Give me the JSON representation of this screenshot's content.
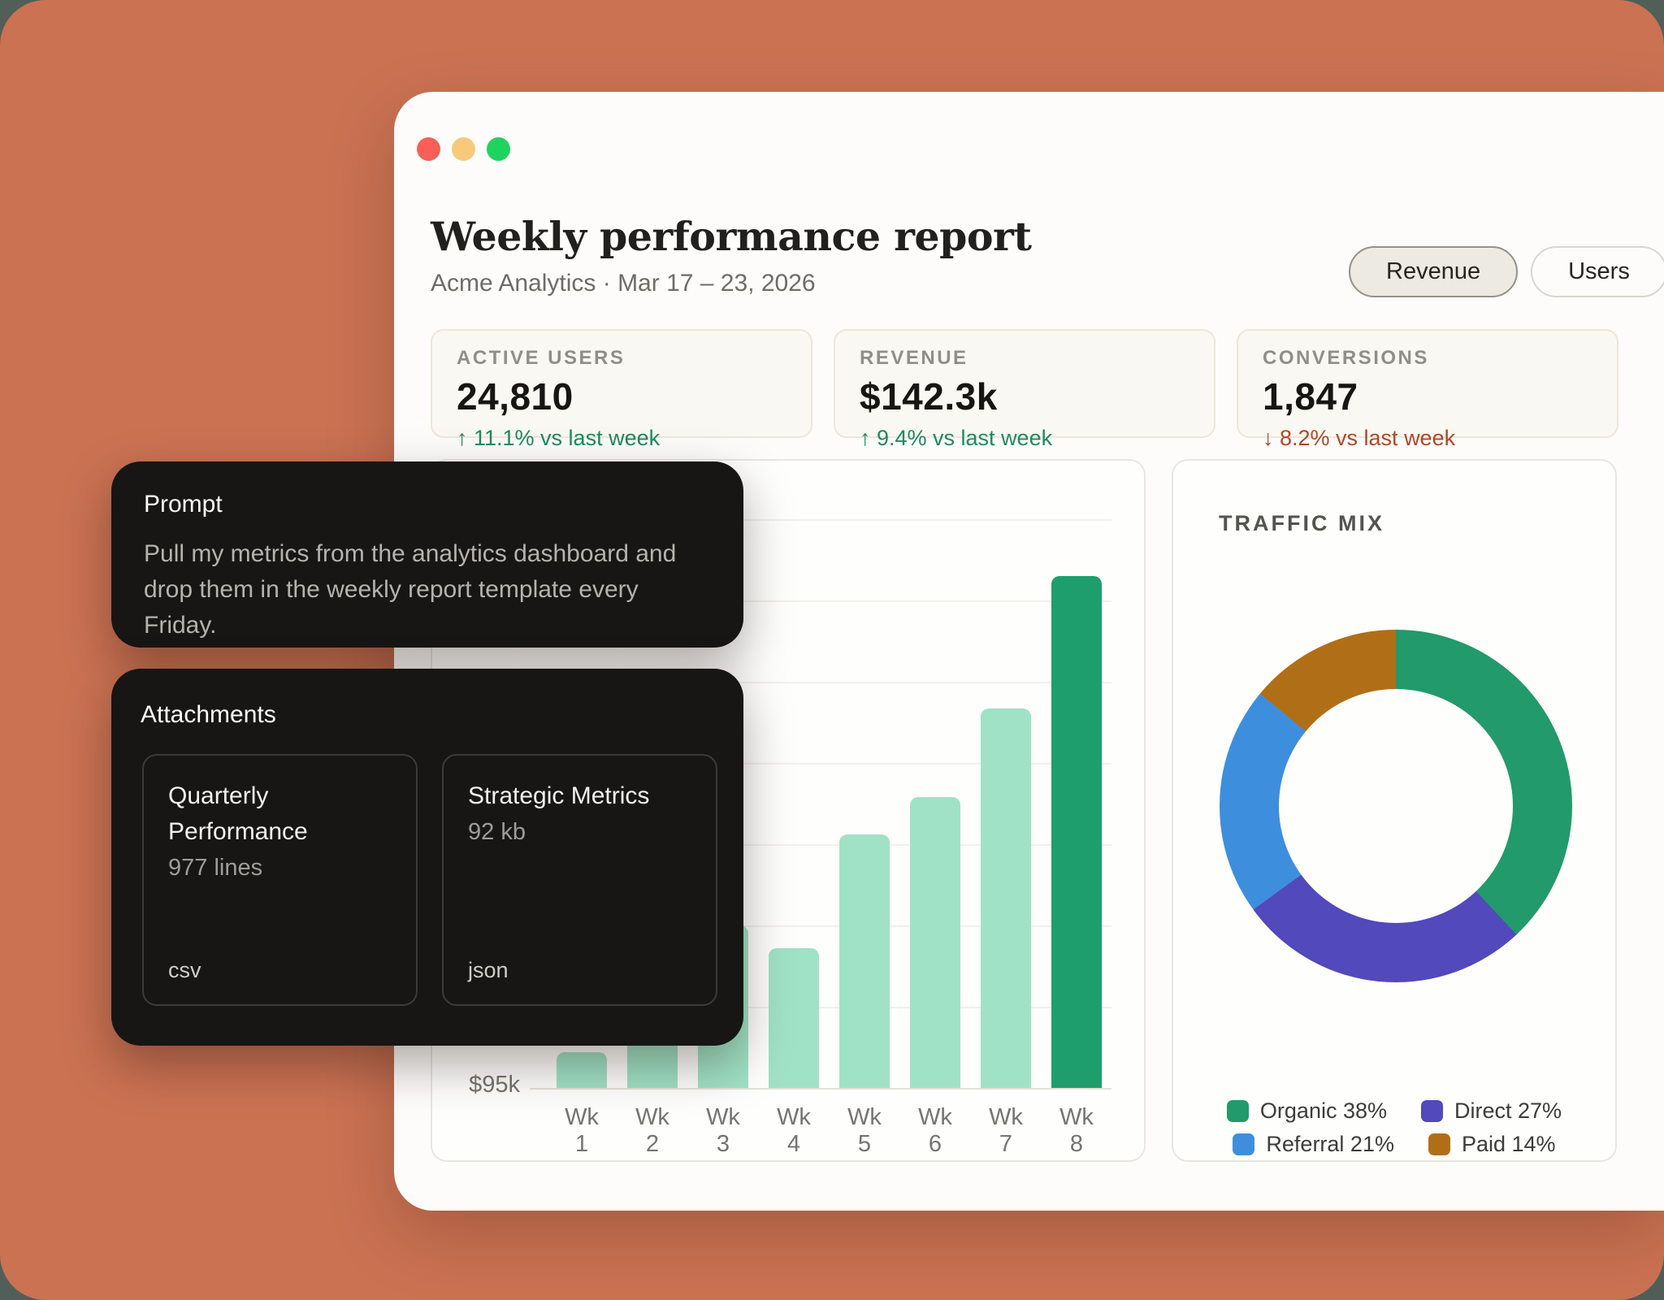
{
  "window": {
    "title": "Weekly performance report",
    "subtitle": "Acme Analytics · Mar 17 – 23, 2026"
  },
  "toolbar": {
    "revenue_label": "Revenue",
    "users_label": "Users"
  },
  "traffic_lights": [
    "close",
    "minimize",
    "zoom"
  ],
  "kpis": [
    {
      "label": "ACTIVE USERS",
      "value": "24,810",
      "delta": "↑ 11.1% vs last week",
      "direction": "up"
    },
    {
      "label": "REVENUE",
      "value": "$142.3k",
      "delta": "↑ 9.4% vs last week",
      "direction": "up"
    },
    {
      "label": "CONVERSIONS",
      "value": "1,847",
      "delta": "↓ 8.2% vs last week",
      "direction": "down"
    }
  ],
  "prompt_card": {
    "title": "Prompt",
    "body": "Pull my metrics from the analytics dashboard and drop them in the weekly report template every Friday."
  },
  "attachments_card": {
    "title": "Attachments",
    "files": [
      {
        "name": "Quarterly Performance",
        "meta": "977 lines",
        "type": "csv"
      },
      {
        "name": "Strategic Metrics",
        "meta": "92 kb",
        "type": "json"
      }
    ]
  },
  "chart_data": [
    {
      "type": "bar",
      "title": "",
      "categories": [
        "Wk 1",
        "Wk 2",
        "Wk 3",
        "Wk 4",
        "Wk 5",
        "Wk 6",
        "Wk 7",
        "Wk 8"
      ],
      "values": [
        98.3,
        100.6,
        110.0,
        107.9,
        118.4,
        121.9,
        130.1,
        142.3
      ],
      "unit": "$k revenue (estimated; axis base labeled $95k)",
      "y_base_label": "$95k",
      "ylim": [
        95,
        143
      ],
      "grid": true,
      "highlight_index": 7,
      "bar_color": "#a0e2c6",
      "highlight_color": "#1f9e6d"
    },
    {
      "type": "donut",
      "title": "TRAFFIC MIX",
      "segments": [
        {
          "label": "Organic",
          "value": 38,
          "color": "#229a6b"
        },
        {
          "label": "Direct",
          "value": 27,
          "color": "#5149bc"
        },
        {
          "label": "Referral",
          "value": 21,
          "color": "#3e8ede"
        },
        {
          "label": "Paid",
          "value": 14,
          "color": "#b06f17"
        }
      ],
      "legend_labels": [
        "Organic 38%",
        "Direct 27%",
        "Referral 21%",
        "Paid 14%"
      ],
      "legend_position": "bottom"
    }
  ],
  "colors": {
    "background": "#cb7253",
    "page_behind": "#515f58",
    "window": "#fdfcfa",
    "kpi_card": "#faf8f2",
    "positive": "#1d8a60",
    "negative": "#b04726",
    "dark_card": "#171614",
    "traffic_red": "#f75f57",
    "traffic_yellow": "#f8c979",
    "traffic_green": "#1fd35f"
  }
}
